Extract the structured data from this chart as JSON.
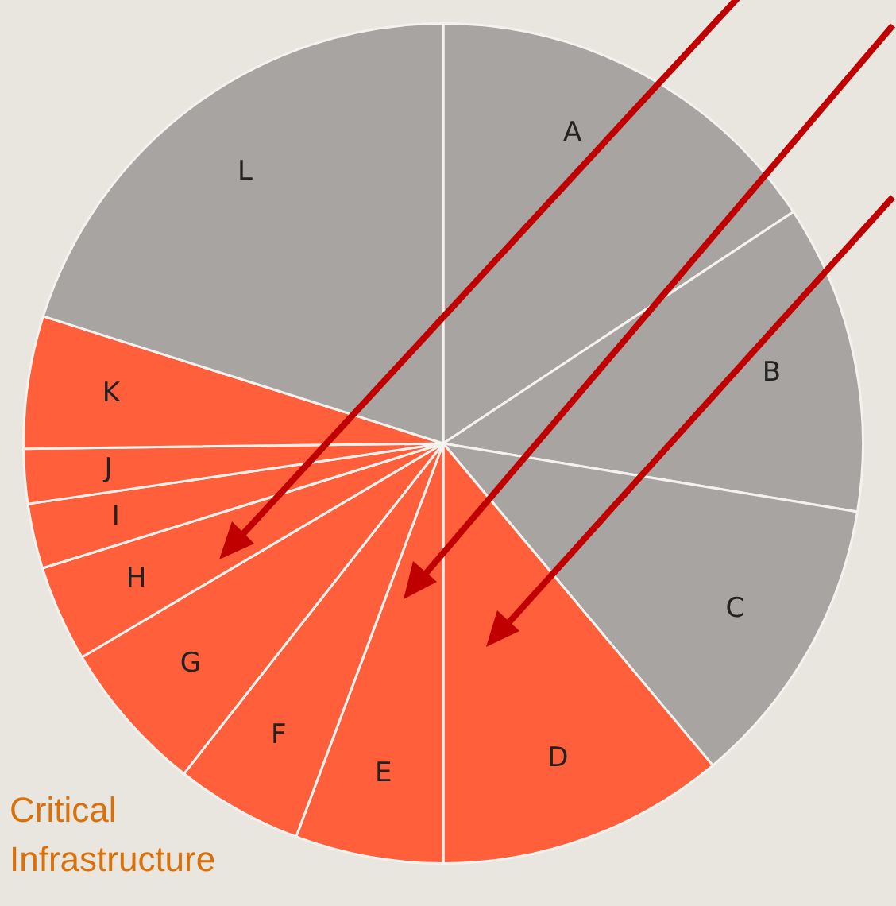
{
  "chart_data": {
    "type": "pie",
    "categories": [
      "A",
      "B",
      "C",
      "D",
      "E",
      "F",
      "G",
      "H",
      "I",
      "J",
      "K",
      "L"
    ],
    "values": [
      15.7,
      11.9,
      11.3,
      11.1,
      5.7,
      4.9,
      5.9,
      3.7,
      2.5,
      2.1,
      5.1,
      20.1
    ],
    "colors": [
      "#a8a4a1",
      "#a8a4a1",
      "#a8a4a1",
      "#ff5f3b",
      "#ff5f3b",
      "#ff5f3b",
      "#ff5f3b",
      "#ff5f3b",
      "#ff5f3b",
      "#ff5f3b",
      "#ff5f3b",
      "#a8a4a1"
    ],
    "annotations": [
      "Critical Infrastructure"
    ],
    "legend": false
  }
}
